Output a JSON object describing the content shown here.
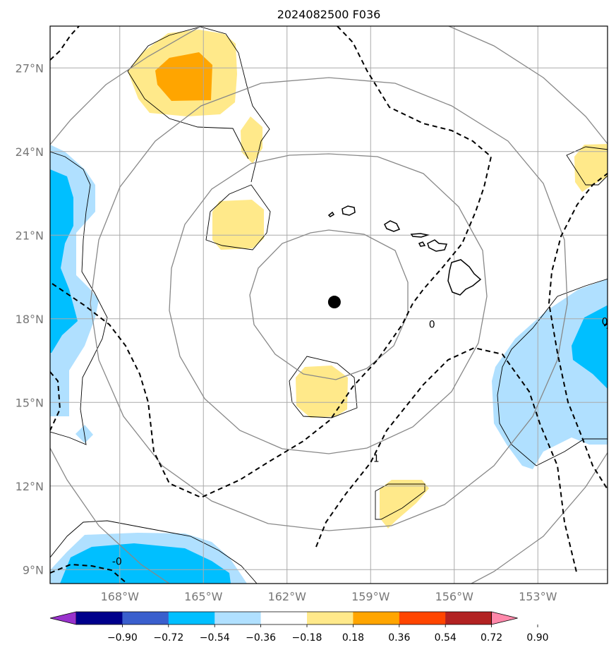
{
  "title": "2024082500 F036",
  "map": {
    "lon_range": [
      -170.5,
      -150.5
    ],
    "lat_range": [
      8.5,
      28.5
    ],
    "lon_ticks": [
      {
        "value": -168,
        "label": "168°W"
      },
      {
        "value": -165,
        "label": "165°W"
      },
      {
        "value": -162,
        "label": "162°W"
      },
      {
        "value": -159,
        "label": "159°W"
      },
      {
        "value": -156,
        "label": "156°W"
      },
      {
        "value": -153,
        "label": "153°W"
      }
    ],
    "lat_ticks": [
      {
        "value": 27,
        "label": "27°N"
      },
      {
        "value": 24,
        "label": "24°N"
      },
      {
        "value": 21,
        "label": "21°N"
      },
      {
        "value": 18,
        "label": "18°N"
      },
      {
        "value": 15,
        "label": "15°N"
      },
      {
        "value": 12,
        "label": "12°N"
      },
      {
        "value": 9,
        "label": "9°N"
      }
    ],
    "grid": true,
    "center_marker": {
      "lon": -160.3,
      "lat": 18.6
    },
    "range_rings_count": 4,
    "contour_labels": [
      {
        "text": "0",
        "lon": -156.8,
        "lat": 17.8
      },
      {
        "text": "1",
        "lon": -158.8,
        "lat": 13.0
      },
      {
        "text": "-0",
        "lon": -168.1,
        "lat": 9.3
      },
      {
        "text": "0",
        "lon": -150.6,
        "lat": 17.9
      }
    ]
  },
  "colorbar": {
    "ticks": [
      "−0.90",
      "−0.72",
      "−0.54",
      "−0.36",
      "−0.18",
      "0.18",
      "0.36",
      "0.54",
      "0.72",
      "0.90"
    ],
    "colors": [
      "#9932CC",
      "#00008B",
      "#3A5FCD",
      "#00BFFF",
      "#B0E0FF",
      "#FFFFFF",
      "#FFE98A",
      "#FFA500",
      "#FF4500",
      "#B22222",
      "#FF88AA"
    ]
  }
}
